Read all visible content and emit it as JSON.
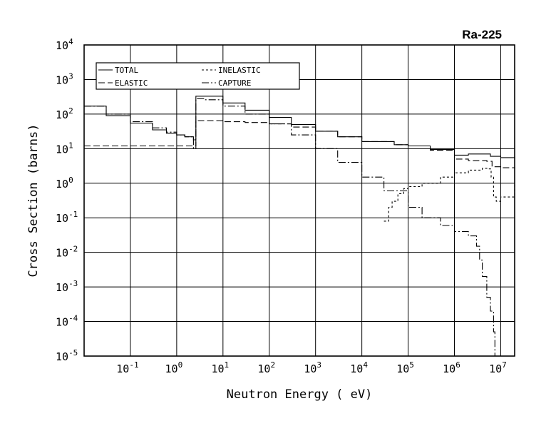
{
  "chart_data": {
    "type": "line",
    "title": "Ra-225",
    "xlabel": "Neutron Energy ( eV)",
    "ylabel": "Cross Section (barns)",
    "xscale": "log",
    "yscale": "log",
    "xlim": [
      0.01,
      20000000
    ],
    "ylim": [
      1e-05,
      10000
    ],
    "grid": true,
    "legend_position": "top-left",
    "x_ticks": [
      {
        "value": 0.1,
        "base": "10",
        "exp": "-1"
      },
      {
        "value": 1,
        "base": "10",
        "exp": "0"
      },
      {
        "value": 10,
        "base": "10",
        "exp": "1"
      },
      {
        "value": 100,
        "base": "10",
        "exp": "2"
      },
      {
        "value": 1000,
        "base": "10",
        "exp": "3"
      },
      {
        "value": 10000,
        "base": "10",
        "exp": "4"
      },
      {
        "value": 100000,
        "base": "10",
        "exp": "5"
      },
      {
        "value": 1000000,
        "base": "10",
        "exp": "6"
      },
      {
        "value": 10000000,
        "base": "10",
        "exp": "7"
      }
    ],
    "y_ticks": [
      {
        "value": 1e-05,
        "base": "10",
        "exp": "-5"
      },
      {
        "value": 0.0001,
        "base": "10",
        "exp": "-4"
      },
      {
        "value": 0.001,
        "base": "10",
        "exp": "-3"
      },
      {
        "value": 0.01,
        "base": "10",
        "exp": "-2"
      },
      {
        "value": 0.1,
        "base": "10",
        "exp": "-1"
      },
      {
        "value": 1,
        "base": "10",
        "exp": "0"
      },
      {
        "value": 10,
        "base": "10",
        "exp": "1"
      },
      {
        "value": 100,
        "base": "10",
        "exp": "2"
      },
      {
        "value": 1000,
        "base": "10",
        "exp": "3"
      },
      {
        "value": 10000,
        "base": "10",
        "exp": "4"
      }
    ],
    "series": [
      {
        "name": "TOTAL",
        "dash": "",
        "points": [
          [
            0.01,
            170
          ],
          [
            0.03,
            90
          ],
          [
            0.1,
            55
          ],
          [
            0.3,
            35
          ],
          [
            0.6,
            28
          ],
          [
            1,
            25
          ],
          [
            1.5,
            22
          ],
          [
            2.3,
            21
          ],
          [
            2.3,
            18
          ],
          [
            2.6,
            18
          ],
          [
            2.6,
            330
          ],
          [
            4,
            330
          ],
          [
            10,
            210
          ],
          [
            30,
            130
          ],
          [
            100,
            80
          ],
          [
            300,
            50
          ],
          [
            1000,
            32
          ],
          [
            3000,
            22
          ],
          [
            10000,
            16
          ],
          [
            50000,
            13
          ],
          [
            100000,
            12
          ],
          [
            300000,
            9.5
          ],
          [
            1000000,
            6.5
          ],
          [
            2000000,
            7
          ],
          [
            4000000,
            7
          ],
          [
            6000000,
            6
          ],
          [
            10000000,
            5.5
          ],
          [
            20000000,
            6
          ]
        ]
      },
      {
        "name": "ELASTIC",
        "dash": "9,4",
        "points": [
          [
            0.01,
            12
          ],
          [
            0.1,
            12
          ],
          [
            1,
            12
          ],
          [
            2.3,
            12
          ],
          [
            2.6,
            12
          ],
          [
            2.6,
            65
          ],
          [
            5,
            65
          ],
          [
            10,
            60
          ],
          [
            30,
            57
          ],
          [
            100,
            52
          ],
          [
            300,
            42
          ],
          [
            1000,
            32
          ],
          [
            3000,
            22
          ],
          [
            10000,
            16
          ],
          [
            50000,
            13
          ],
          [
            100000,
            12
          ],
          [
            300000,
            9
          ],
          [
            1000000,
            5
          ],
          [
            2000000,
            4.5
          ],
          [
            3000000,
            4.5
          ],
          [
            5000000,
            4.3
          ],
          [
            6500000,
            3
          ],
          [
            10000000,
            2.8
          ],
          [
            20000000,
            2.7
          ]
        ]
      },
      {
        "name": "INELASTIC",
        "dash": "3,3",
        "points": [
          [
            30000,
            0.08
          ],
          [
            38000,
            0.08
          ],
          [
            38000,
            0.2
          ],
          [
            45000,
            0.3
          ],
          [
            60000,
            0.5
          ],
          [
            80000,
            0.7
          ],
          [
            100000,
            0.8
          ],
          [
            200000,
            1
          ],
          [
            500000,
            1.5
          ],
          [
            1000000,
            2
          ],
          [
            2000000,
            2.4
          ],
          [
            4000000,
            2.7
          ],
          [
            5500000,
            2.6
          ],
          [
            6200000,
            1.5
          ],
          [
            7000000,
            0.4
          ],
          [
            8000000,
            0.3
          ],
          [
            10000000,
            0.4
          ],
          [
            20000000,
            0.9
          ]
        ]
      },
      {
        "name": "CAPTURE",
        "dash": "10,3,2,3",
        "points": [
          [
            0.01,
            170
          ],
          [
            0.03,
            100
          ],
          [
            0.1,
            60
          ],
          [
            0.3,
            40
          ],
          [
            0.6,
            30
          ],
          [
            1,
            25
          ],
          [
            1.5,
            22
          ],
          [
            2.3,
            19
          ],
          [
            2.3,
            10
          ],
          [
            2.6,
            10
          ],
          [
            2.6,
            280
          ],
          [
            4,
            260
          ],
          [
            10,
            170
          ],
          [
            30,
            100
          ],
          [
            100,
            52
          ],
          [
            300,
            25
          ],
          [
            1000,
            10
          ],
          [
            3000,
            4
          ],
          [
            10000,
            1.5
          ],
          [
            30000,
            0.6
          ],
          [
            100000,
            0.2
          ],
          [
            200000,
            0.1
          ],
          [
            500000,
            0.06
          ],
          [
            1000000,
            0.04
          ],
          [
            2000000,
            0.03
          ],
          [
            3000000,
            0.015
          ],
          [
            3500000,
            0.006
          ],
          [
            4000000,
            0.002
          ],
          [
            5000000,
            0.0005
          ],
          [
            6000000,
            0.0002
          ],
          [
            7000000,
            5e-05
          ],
          [
            7500000,
            1e-05
          ]
        ]
      }
    ]
  }
}
